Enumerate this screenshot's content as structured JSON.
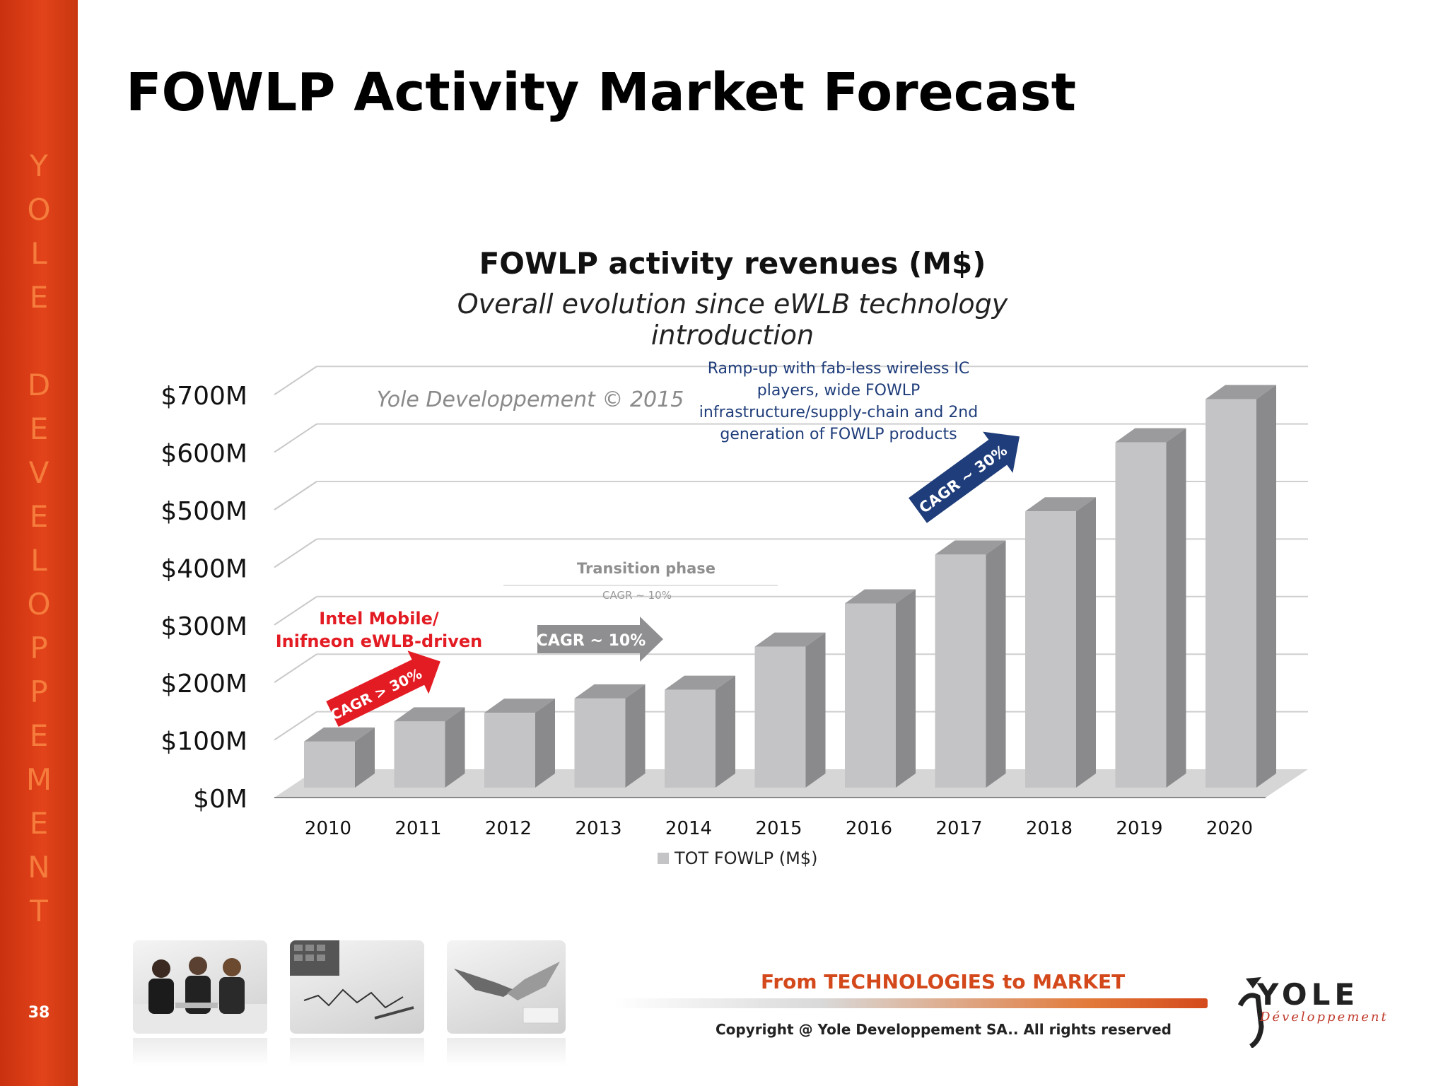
{
  "sidebar": {
    "letters": [
      "Y",
      "O",
      "L",
      "E",
      "",
      "D",
      "E",
      "V",
      "E",
      "L",
      "O",
      "P",
      "P",
      "E",
      "M",
      "E",
      "N",
      "T"
    ],
    "page_number": "38"
  },
  "slide": {
    "title": "FOWLP Activity Market Forecast"
  },
  "chart_data": {
    "type": "bar",
    "title": "FOWLP activity revenues (M$)",
    "subtitle": "Overall evolution since eWLB technology introduction",
    "categories": [
      "2010",
      "2011",
      "2012",
      "2013",
      "2014",
      "2015",
      "2016",
      "2017",
      "2018",
      "2019",
      "2020"
    ],
    "series": [
      {
        "name": "TOT FOWLP (M$)",
        "values": [
          80,
          115,
          130,
          155,
          170,
          245,
          320,
          405,
          480,
          600,
          675
        ]
      }
    ],
    "y_ticks": [
      "$0M",
      "$100M",
      "$200M",
      "$300M",
      "$400M",
      "$500M",
      "$600M",
      "$700M"
    ],
    "ylim": [
      0,
      750
    ],
    "grid": true,
    "legend": "bottom",
    "annotations": {
      "watermark": "Yole Developpement © 2015",
      "phase1_label_line1": "Intel Mobile/",
      "phase1_label_line2": "Inifneon eWLB-driven",
      "phase1_arrow": "CAGR > 30%",
      "transition_label": "Transition phase",
      "transition_sub": "CAGR ~ 10%",
      "phase2_arrow": "CAGR ~ 10%",
      "phase3_line1": "Ramp-up with fab-less wireless IC",
      "phase3_line2": "players, wide FOWLP",
      "phase3_line3": "infrastructure/supply-chain and 2nd",
      "phase3_line4": "generation of FOWLP products",
      "phase3_arrow": "CAGR ~ 30%"
    },
    "colors": {
      "bar_front": "#c4c4c6",
      "bar_side": "#8a8a8c",
      "bar_top": "#9b9b9d",
      "red_arrow": "#e31b23",
      "grey_arrow": "#8f8f91",
      "blue_arrow": "#1f3d7a",
      "phase1_text": "#e31b23",
      "phase3_text": "#1f3d7a"
    }
  },
  "footer": {
    "tagline": "From TECHNOLOGIES to MARKET",
    "copyright": "Copyright @ Yole Developpement SA.. All rights reserved",
    "logo_word": "YOLE",
    "logo_sub": "Développement"
  },
  "photos": [
    "business-meeting-photo",
    "finance-chart-photo",
    "handshake-photo"
  ]
}
